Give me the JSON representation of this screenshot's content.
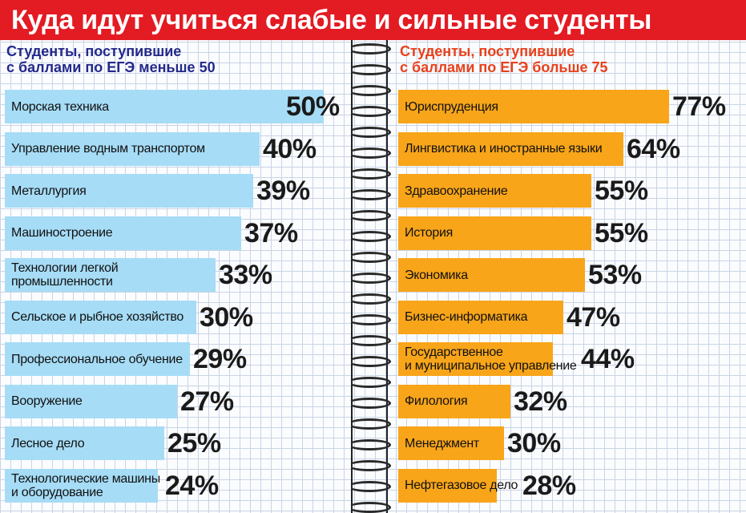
{
  "title": "Куда идут учиться слабые и сильные студенты",
  "chart_data": [
    {
      "type": "bar",
      "title": "Студенты, поступившие\nс баллами по ЕГЭ меньше 50",
      "categories": [
        "Морская техника",
        "Управление водным транспортом",
        "Металлургия",
        "Машиностроение",
        "Технологии легкой\nпромышленности",
        "Сельское и рыбное хозяйство",
        "Профессиональное обучение",
        "Вооружение",
        "Лесное дело",
        "Технологические машины\nи оборудование"
      ],
      "values": [
        50,
        40,
        39,
        37,
        33,
        30,
        29,
        27,
        25,
        24
      ],
      "labels": [
        "50%",
        "40%",
        "39%",
        "37%",
        "33%",
        "30%",
        "29%",
        "27%",
        "25%",
        "24%"
      ],
      "xlim": [
        0,
        50
      ],
      "bar_color": "#a6dcf6"
    },
    {
      "type": "bar",
      "title": "Студенты, поступившие\nс баллами по ЕГЭ больше 75",
      "categories": [
        "Юриспруденция",
        "Лингвистика и иностранные языки",
        "Здравоохранение",
        "История",
        "Экономика",
        "Бизнес-информатика",
        "Государственное\nи муниципальное управление",
        "Филология",
        "Менеджмент",
        "Нефтегазовое дело"
      ],
      "values": [
        77,
        64,
        55,
        55,
        53,
        47,
        44,
        32,
        30,
        28
      ],
      "labels": [
        "77%",
        "64%",
        "55%",
        "55%",
        "53%",
        "47%",
        "44%",
        "32%",
        "30%",
        "28%"
      ],
      "xlim": [
        0,
        77
      ],
      "bar_color": "#f8a51a"
    }
  ]
}
